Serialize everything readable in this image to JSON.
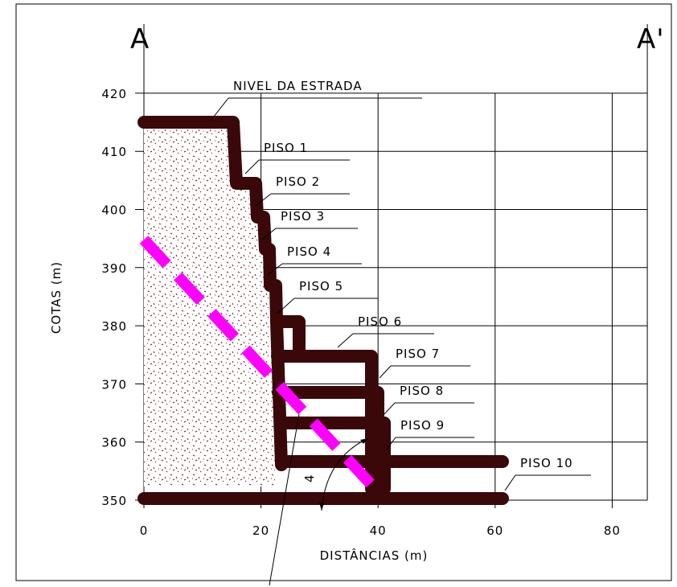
{
  "section": {
    "left_label": "A",
    "right_label": "A'"
  },
  "axes": {
    "x_label": "DISTÂNCIAS (m)",
    "y_label": "COTAS (m)",
    "xlim": [
      0,
      86
    ],
    "ylim": [
      350,
      420
    ],
    "xticks": [
      0,
      20,
      40,
      60,
      80
    ],
    "yticks": [
      350,
      360,
      370,
      380,
      390,
      400,
      410,
      420
    ]
  },
  "labels": [
    "NIVEL DA ESTRADA",
    "PISO 1",
    "PISO 2",
    "PISO 3",
    "PISO 4",
    "PISO 5",
    "PISO 6",
    "PISO 7",
    "PISO 8",
    "PISO 9",
    "PISO 10"
  ],
  "slope_label": "4"
}
